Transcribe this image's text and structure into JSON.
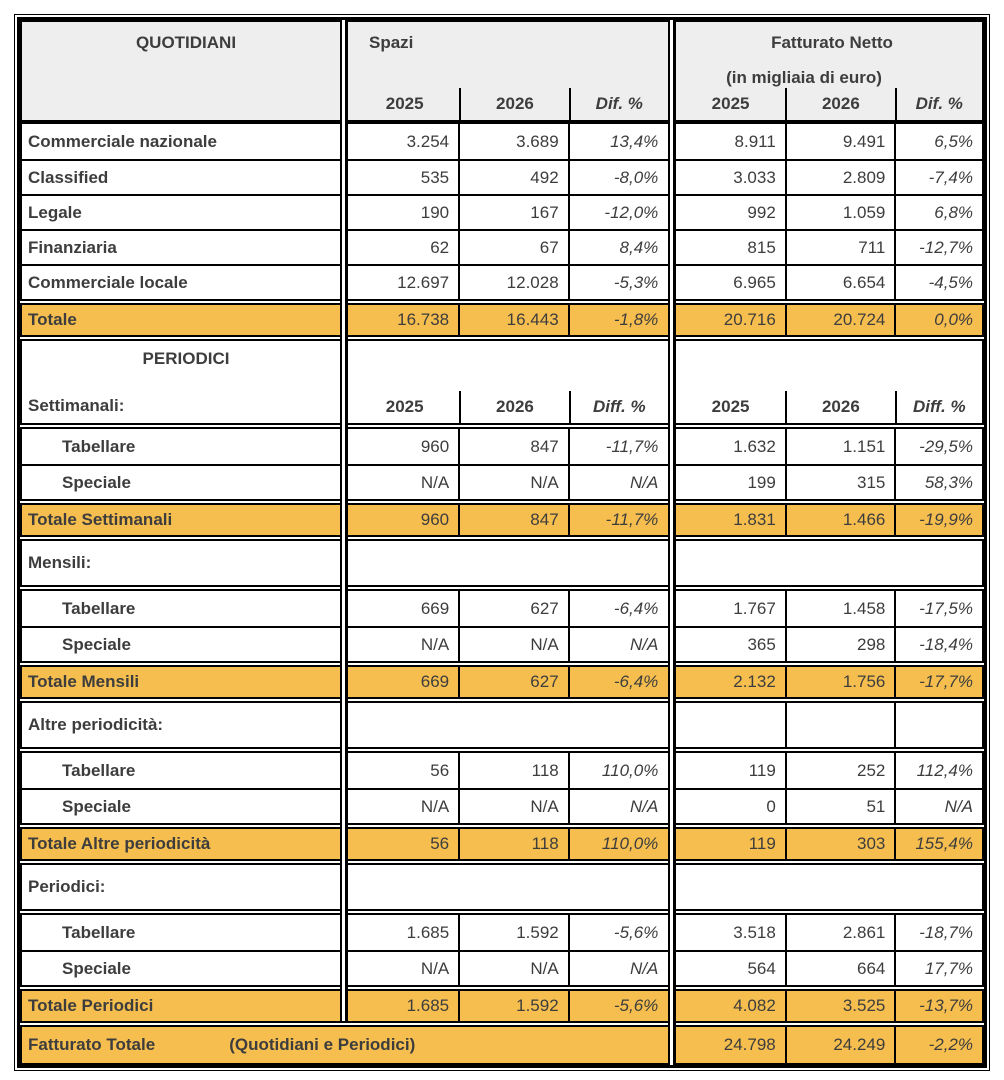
{
  "colors": {
    "highlight_orange": "#F5BE4E",
    "header_gray": "#EEEEEE",
    "text": "#3D3D3D",
    "border": "#000000"
  },
  "header": {
    "quotidiani_title": "QUOTIDIANI",
    "spazi_title": "Spazi",
    "fatturato_title": "Fatturato Netto",
    "fatturato_subtitle": "(in migliaia di euro)",
    "year_labels": [
      "2025",
      "2026",
      "Dif. %",
      "2025",
      "2026",
      "Dif. %"
    ]
  },
  "rows": [
    {
      "type": "data",
      "label": "Commerciale nazionale",
      "indent": false,
      "values": [
        "3.254",
        "3.689",
        "13,4%",
        "8.911",
        "9.491",
        "6,5%"
      ]
    },
    {
      "type": "data",
      "label": "Classified",
      "indent": false,
      "values": [
        "535",
        "492",
        "-8,0%",
        "3.033",
        "2.809",
        "-7,4%"
      ]
    },
    {
      "type": "data",
      "label": "Legale",
      "indent": false,
      "values": [
        "190",
        "167",
        "-12,0%",
        "992",
        "1.059",
        "6,8%"
      ]
    },
    {
      "type": "data",
      "label": "Finanziaria",
      "indent": false,
      "values": [
        "62",
        "67",
        "8,4%",
        "815",
        "711",
        "-12,7%"
      ]
    },
    {
      "type": "data",
      "label": "Commerciale locale",
      "indent": false,
      "values": [
        "12.697",
        "12.028",
        "-5,3%",
        "6.965",
        "6.654",
        "-4,5%"
      ]
    },
    {
      "type": "total",
      "label": "Totale",
      "values": [
        "16.738",
        "16.443",
        "-1,8%",
        "20.716",
        "20.724",
        "0,0%"
      ]
    },
    {
      "type": "periodici_header",
      "title": "PERIODICI",
      "label": "Settimanali:",
      "years": [
        "2025",
        "2026",
        "Diff. %",
        "2025",
        "2026",
        "Diff. %"
      ]
    },
    {
      "type": "data",
      "label": "Tabellare",
      "indent": true,
      "values": [
        "960",
        "847",
        "-11,7%",
        "1.632",
        "1.151",
        "-29,5%"
      ]
    },
    {
      "type": "data",
      "label": "Speciale",
      "indent": true,
      "values": [
        "N/A",
        "N/A",
        "N/A",
        "199",
        "315",
        "58,3%"
      ]
    },
    {
      "type": "total",
      "label": "Totale Settimanali",
      "values": [
        "960",
        "847",
        "-11,7%",
        "1.831",
        "1.466",
        "-19,9%"
      ]
    },
    {
      "type": "section",
      "label": "Mensili:",
      "ruled": false
    },
    {
      "type": "data",
      "label": "Tabellare",
      "indent": true,
      "values": [
        "669",
        "627",
        "-6,4%",
        "1.767",
        "1.458",
        "-17,5%"
      ]
    },
    {
      "type": "data",
      "label": "Speciale",
      "indent": true,
      "values": [
        "N/A",
        "N/A",
        "N/A",
        "365",
        "298",
        "-18,4%"
      ]
    },
    {
      "type": "total",
      "label": "Totale Mensili",
      "values": [
        "669",
        "627",
        "-6,4%",
        "2.132",
        "1.756",
        "-17,7%"
      ]
    },
    {
      "type": "section",
      "label": "Altre periodicità:",
      "ruled": true
    },
    {
      "type": "data",
      "label": "Tabellare",
      "indent": true,
      "values": [
        "56",
        "118",
        "110,0%",
        "119",
        "252",
        "112,4%"
      ]
    },
    {
      "type": "data",
      "label": "Speciale",
      "indent": true,
      "values": [
        "N/A",
        "N/A",
        "N/A",
        "0",
        "51",
        "N/A"
      ]
    },
    {
      "type": "total",
      "label": "Totale Altre periodicità",
      "values": [
        "56",
        "118",
        "110,0%",
        "119",
        "303",
        "155,4%"
      ]
    },
    {
      "type": "section",
      "label": "Periodici:",
      "ruled": false
    },
    {
      "type": "data",
      "label": "Tabellare",
      "indent": true,
      "values": [
        "1.685",
        "1.592",
        "-5,6%",
        "3.518",
        "2.861",
        "-18,7%"
      ]
    },
    {
      "type": "data",
      "label": "Speciale",
      "indent": true,
      "values": [
        "N/A",
        "N/A",
        "N/A",
        "564",
        "664",
        "17,7%"
      ]
    },
    {
      "type": "total",
      "label": "Totale Periodici",
      "values": [
        "1.685",
        "1.592",
        "-5,6%",
        "4.082",
        "3.525",
        "-13,7%"
      ]
    },
    {
      "type": "grand_total",
      "label": "Fatturato Totale",
      "sublabel": "(Quotidiani e Periodici)",
      "values": [
        "24.798",
        "24.249",
        "-2,2%"
      ]
    }
  ]
}
